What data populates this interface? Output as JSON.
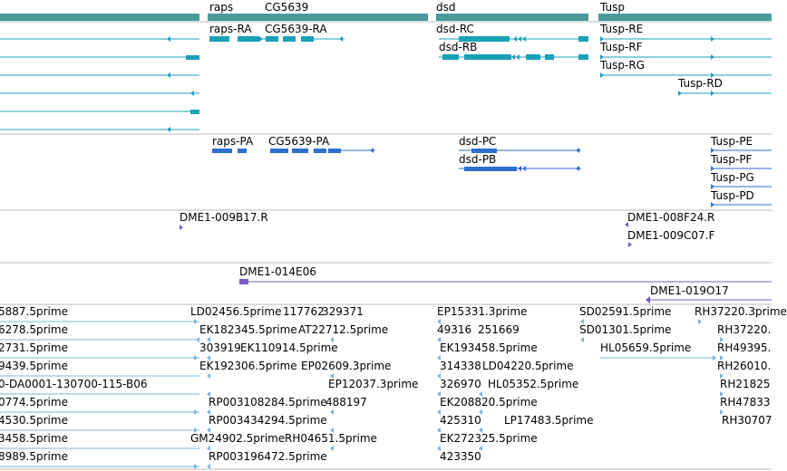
{
  "colors": {
    "gene": "#4a9a9a",
    "transcript": "#1aa0b8",
    "protein": "#2e6fd0",
    "clone": "#7a5cc0",
    "est": "#7ab4e0",
    "divider": "#b8b8b8"
  },
  "genes": [
    "raps",
    "CG5639",
    "dsd",
    "Tusp"
  ],
  "transcripts": [
    "raps-RA",
    "CG5639-RA",
    "dsd-RC",
    "dsd-RB",
    "Tusp-RE",
    "Tusp-RF",
    "Tusp-RG",
    "Tusp-RD"
  ],
  "proteins": [
    "raps-PA",
    "CG5639-PA",
    "dsd-PC",
    "dsd-PB",
    "Tusp-PE",
    "Tusp-PF",
    "Tusp-PG",
    "Tusp-PD"
  ],
  "clones_a": [
    "DME1-009B17.R",
    "DME1-008F24.R",
    "DME1-009C07.F"
  ],
  "clones_b": [
    "DME1-014E06",
    "DME1-019O17"
  ],
  "ests": [
    "5887.5prime",
    "6278.5prime",
    "2731.5prime",
    "9439.5prime",
    "0-DA0001-130700-115-B06",
    "0774.5prime",
    "4530.5prime",
    "3458.5prime",
    "8989.5prime",
    "LD02456.5prime",
    "117762",
    "329371",
    "EK182345.5prime",
    "AT22712.5prime",
    "303919",
    "EK110914.5prime",
    "EK192306.5prime",
    "EP02609.3prime",
    "EP12037.3prime",
    "RP003108284.5prime",
    "488197",
    "RP003434294.5prime",
    "GM24902.5prime",
    "RH04651.5prime",
    "RP003196472.5prime",
    "EP15331.3prime",
    "49316",
    "251669",
    "EK193458.5prime",
    "314338",
    "LD04220.5prime",
    "326970",
    "HL05352.5prime",
    "EK208820.5prime",
    "425310",
    "LP17483.5prime",
    "EK272325.5prime",
    "423350",
    "SD02591.5prime",
    "SD01301.5prime",
    "HL05659.5prime",
    "RH37220.3prime",
    "RH37220.",
    "RH49395.",
    "RH26010.",
    "RH21825",
    "RH47833",
    "RH30707"
  ]
}
